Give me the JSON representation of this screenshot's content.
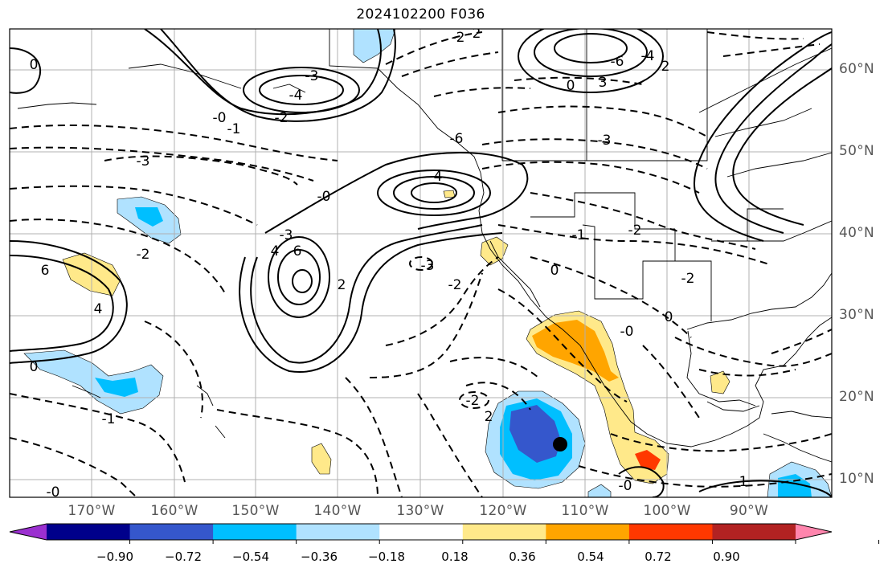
{
  "title": "2024102200 F036",
  "colors": {
    "land": "#ffffff",
    "grid": "#b0b0b0",
    "contour": "#000000",
    "marker": "#000000"
  },
  "longitude_labels": [
    "170°W",
    "160°W",
    "150°W",
    "140°W",
    "130°W",
    "120°W",
    "110°W",
    "100°W",
    "90°W"
  ],
  "latitude_labels": [
    "60°N",
    "50°N",
    "40°N",
    "30°N",
    "20°N",
    "10°N"
  ],
  "colorbar": {
    "ticks": [
      "−0.90",
      "−0.72",
      "−0.54",
      "−0.36",
      "−0.18",
      "0.18",
      "0.36",
      "0.54",
      "0.72",
      "0.90"
    ],
    "colors": [
      "#9b30d0",
      "#00008b",
      "#3557cc",
      "#00bfff",
      "#b0e2ff",
      "#ffffff",
      "#ffe98a",
      "#ffa500",
      "#ff3800",
      "#b22222",
      "#ff85ad"
    ]
  },
  "contour_labels": [
    "-2",
    "-3",
    "-4",
    "-3",
    "-1",
    "-0",
    "-2",
    "6",
    "4",
    "2",
    "-2",
    "-3",
    "-1",
    "0",
    "-3",
    "-6",
    "-4",
    "-0",
    "-6",
    "-4",
    "3",
    "2",
    "0",
    "-2",
    "-3",
    "-2",
    "-2",
    "0",
    "-1",
    "-0",
    "-2",
    "0",
    "-0",
    "-1",
    "-0",
    "2",
    "0",
    "6",
    "4",
    "-2"
  ]
}
